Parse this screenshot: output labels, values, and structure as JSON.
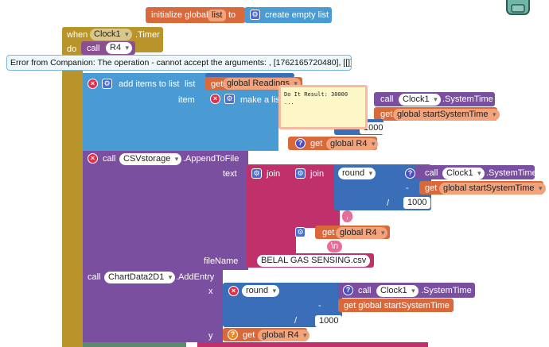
{
  "init_block": {
    "prefix": "initialize global",
    "var_name": "list",
    "to_label": "to",
    "create_label": "create empty list"
  },
  "event_block": {
    "when_label": "when",
    "component": "Clock1",
    "event": ".Timer",
    "do_label": "do",
    "call_label": "call",
    "procedure": "R4"
  },
  "error_tooltip": {
    "text": "Error from Companion: The operation - cannot accept the arguments: , [1762165720480], [[]]"
  },
  "result_bubble": {
    "line1": "Do It Result: 30000",
    "line2": "..."
  },
  "add_items_block": {
    "label": "add items to list",
    "list_label": "list",
    "get_label": "get",
    "list_var": "global Readings",
    "item_label": "item",
    "make_list_label": "make a list"
  },
  "time_row1": {
    "call_label": "call",
    "component": "Clock1",
    "method": ".SystemTime",
    "get_label": "get",
    "var": "global startSystemTime",
    "divisor": "1000",
    "get_r4_label": "get",
    "r4_var": "global R4"
  },
  "csv_block": {
    "call_label": "call",
    "component": "CSVstorage",
    "method": ".AppendToFile",
    "text_label": "text",
    "join_label": "join",
    "join2_label": "join",
    "round_label": "round",
    "clock_call_label": "call",
    "clock_component": "Clock1",
    "clock_method": ".SystemTime",
    "minus": "-",
    "start_get_label": "get",
    "start_var": "global startSystemTime",
    "div": "/",
    "divisor": "1000",
    "comma_str": ",",
    "r4_get_label": "get",
    "r4_var": "global R4",
    "newline_str": "\\n",
    "filename_label": "fileName",
    "filename_value": "BELAL GAS SENSING.csv"
  },
  "chart_block": {
    "call_label": "call",
    "component": "ChartData2D1",
    "method": ".AddEntry",
    "x_label": "x",
    "round_label": "round",
    "clock_call_label": "call",
    "clock_component": "Clock1",
    "clock_method": ".SystemTime",
    "minus": "-",
    "start_get": "get global startSystemTime",
    "div": "/",
    "divisor": "1000",
    "y_label": "y",
    "y_get_label": "get",
    "y_var": "global R4"
  },
  "colors": {
    "variables": "#d9683a",
    "lists": "#4a9bd3",
    "components": "#7a4fa0",
    "text": "#c0306a",
    "math": "#3a6eb8",
    "control": "#b8942a"
  }
}
